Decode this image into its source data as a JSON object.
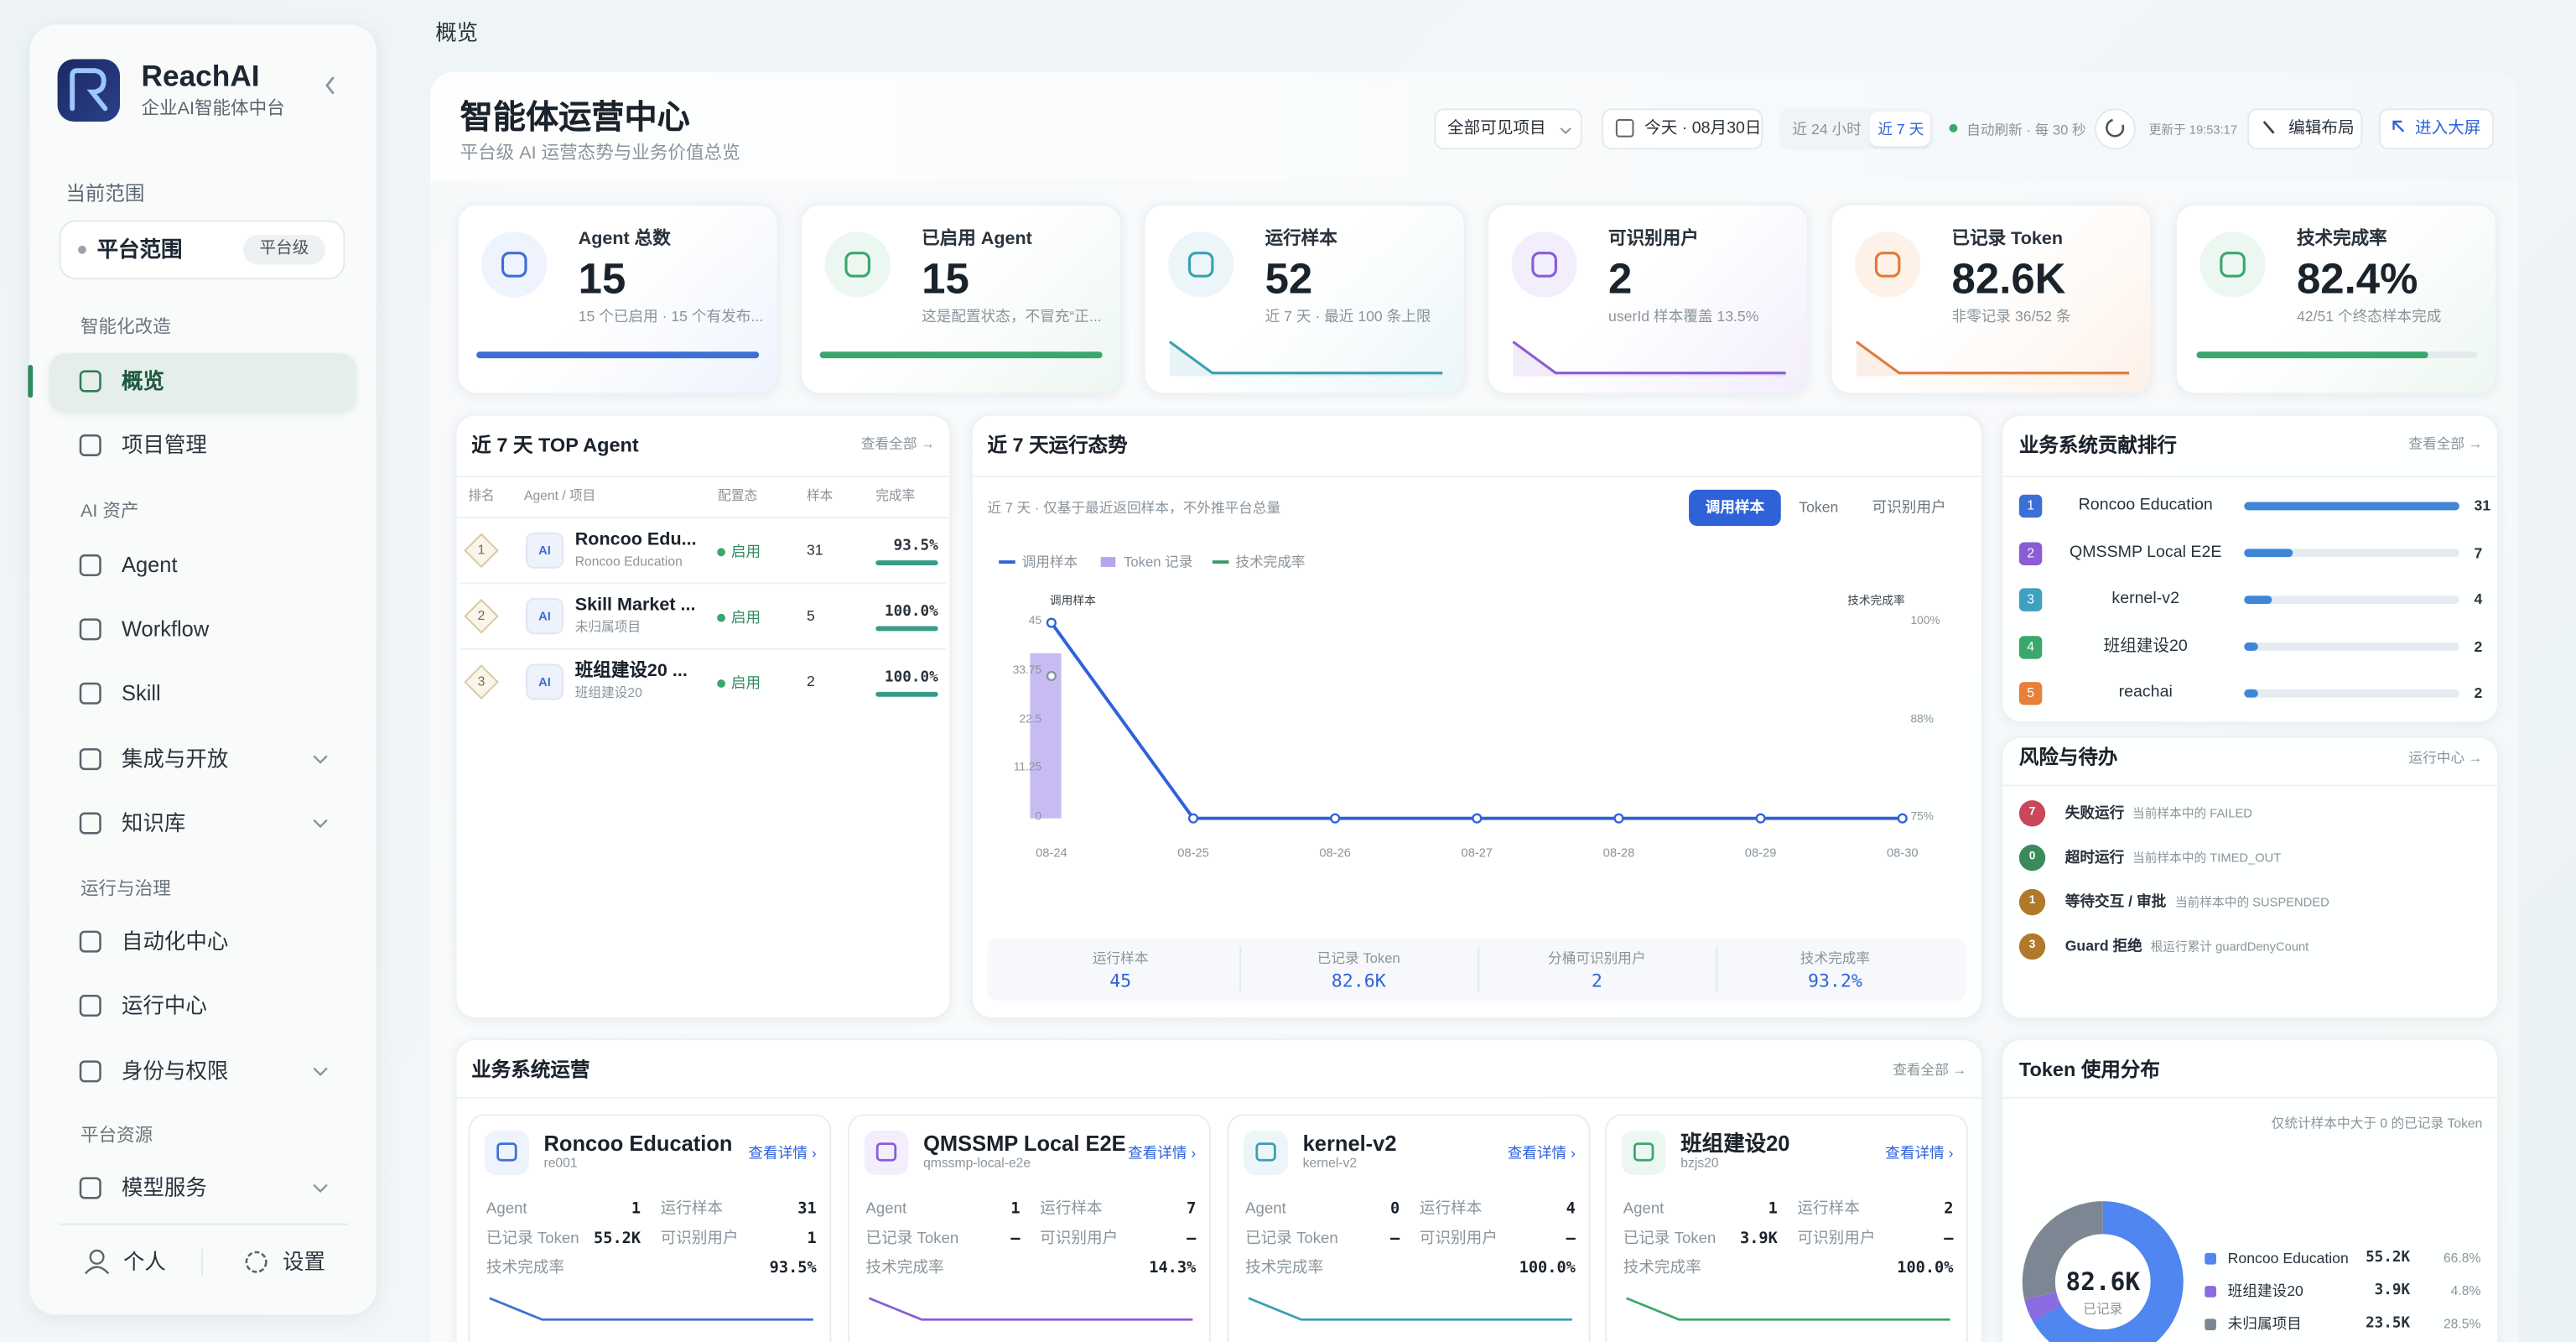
{
  "sidebar": {
    "brand": "ReachAI",
    "tagline": "企业AI智能体中台",
    "scope_label": "当前范围",
    "scope": "平台范围",
    "scope_level": "平台级",
    "groups": [
      {
        "title": "智能化改造",
        "items": [
          "概览",
          "项目管理"
        ]
      },
      {
        "title": "AI 资产",
        "items": [
          "Agent",
          "Workflow",
          "Skill",
          "集成与开放",
          "知识库"
        ]
      },
      {
        "title": "运行与治理",
        "items": [
          "自动化中心",
          "运行中心",
          "身份与权限"
        ]
      },
      {
        "title": "平台资源",
        "items": [
          "模型服务"
        ]
      }
    ],
    "footer": [
      "个人",
      "设置"
    ]
  },
  "breadcrumb": "概览",
  "header": {
    "title": "智能体运营中心",
    "subtitle": "平台级 AI 运营态势与业务价值总览",
    "project_select": "全部可见项目",
    "date": "今天 · 08月30日",
    "ranges": [
      "近 24 小时",
      "近 7 天"
    ],
    "auto_refresh": "自动刷新 · 每 30 秒",
    "updated": "更新于 19:53:17",
    "edit_layout": "编辑布局",
    "big_screen": "进入大屏"
  },
  "kpis": [
    {
      "label": "Agent 总数",
      "value": "15",
      "note": "15 个已启用 · 15 个有发布..."
    },
    {
      "label": "已启用 Agent",
      "value": "15",
      "note": "这是配置状态，不冒充“正..."
    },
    {
      "label": "运行样本",
      "value": "52",
      "note": "近 7 天 · 最近 100 条上限"
    },
    {
      "label": "可识别用户",
      "value": "2",
      "note": "userId 样本覆盖 13.5%"
    },
    {
      "label": "已记录 Token",
      "value": "82.6K",
      "note": "非零记录 36/52 条"
    },
    {
      "label": "技术完成率",
      "value": "82.4%",
      "note": "42/51 个终态样本完成"
    }
  ],
  "top_agents": {
    "title": "近 7 天 TOP Agent",
    "more": "查看全部 →",
    "columns": [
      "排名",
      "Agent / 项目",
      "配置态",
      "样本",
      "完成率"
    ],
    "rows": [
      {
        "rank": "1",
        "badge": "AI",
        "name": "Roncoo Edu...",
        "project": "Roncoo Education",
        "status": "启用",
        "samples": "31",
        "rate": "93.5%"
      },
      {
        "rank": "2",
        "badge": "AI",
        "name": "Skill Market ...",
        "project": "未归属项目",
        "status": "启用",
        "samples": "5",
        "rate": "100.0%"
      },
      {
        "rank": "3",
        "badge": "AI",
        "name": "班组建设20 ...",
        "project": "班组建设20",
        "status": "启用",
        "samples": "2",
        "rate": "100.0%"
      }
    ]
  },
  "trend": {
    "title": "近 7 天运行态势",
    "note": "近 7 天 · 仅基于最近返回样本，不外推平台总量",
    "tabs": [
      "调用样本",
      "Token",
      "可识别用户"
    ],
    "chart": {
      "type": "line",
      "y_title": "调用样本",
      "y2_title": "技术完成率",
      "categories": [
        "08-24",
        "08-25",
        "08-26",
        "08-27",
        "08-28",
        "08-29",
        "08-30"
      ],
      "series": [
        {
          "name": "调用样本",
          "type": "line",
          "color": "#2f62d9",
          "values": [
            45,
            0,
            0,
            0,
            0,
            0,
            0
          ]
        },
        {
          "name": "Token 记录",
          "type": "bar",
          "color": "#b6a4ee",
          "values": [
            38,
            0,
            0,
            0,
            0,
            0,
            0
          ]
        },
        {
          "name": "技术完成率",
          "type": "line",
          "axis": "y2",
          "color": "#3a9a6a",
          "values": [
            93.2,
            null,
            null,
            null,
            null,
            null,
            null
          ]
        }
      ],
      "ylim": [
        0,
        45
      ],
      "yticks": [
        0,
        11.25,
        22.5,
        33.75,
        45
      ],
      "y2lim": [
        75,
        100
      ],
      "y2ticks": [
        {
          "value": 75,
          "label": "75%"
        },
        {
          "value": 87.5,
          "label": "88%"
        },
        {
          "value": 100,
          "label": "100%"
        }
      ]
    },
    "summary": [
      {
        "label": "运行样本",
        "value": "45"
      },
      {
        "label": "已记录 Token",
        "value": "82.6K"
      },
      {
        "label": "分桶可识别用户",
        "value": "2"
      },
      {
        "label": "技术完成率",
        "value": "93.2%"
      }
    ]
  },
  "ranking": {
    "title": "业务系统贡献排行",
    "more": "查看全部 →",
    "items": [
      {
        "rank": "1",
        "name": "Roncoo Education",
        "value": 31
      },
      {
        "rank": "2",
        "name": "QMSSMP Local E2E",
        "value": 7
      },
      {
        "rank": "3",
        "name": "kernel-v2",
        "value": 4
      },
      {
        "rank": "4",
        "name": "班组建设20",
        "value": 2
      },
      {
        "rank": "5",
        "name": "reachai",
        "value": 2
      }
    ]
  },
  "risks": {
    "title": "风险与待办",
    "more": "运行中心 →",
    "items": [
      {
        "count": "7",
        "label": "失败运行",
        "note": "当前样本中的 FAILED"
      },
      {
        "count": "0",
        "label": "超时运行",
        "note": "当前样本中的 TIMED_OUT"
      },
      {
        "count": "1",
        "label": "等待交互 / 审批",
        "note": "当前样本中的 SUSPENDED"
      },
      {
        "count": "3",
        "label": "Guard 拒绝",
        "note": "根运行累计 guardDenyCount"
      }
    ]
  },
  "business": {
    "title": "业务系统运营",
    "more": "查看全部 →",
    "detail": "查看详情 ›",
    "metric_labels": [
      "Agent",
      "运行样本",
      "已记录 Token",
      "可识别用户",
      "技术完成率"
    ],
    "cards": [
      {
        "name": "Roncoo Education",
        "code": "re001",
        "metrics": [
          "1",
          "31",
          "55.2K",
          "1",
          "93.5%"
        ]
      },
      {
        "name": "QMSSMP Local E2E",
        "code": "qmssmp-local-e2e",
        "metrics": [
          "1",
          "7",
          "–",
          "–",
          "14.3%"
        ]
      },
      {
        "name": "kernel-v2",
        "code": "kernel-v2",
        "metrics": [
          "0",
          "4",
          "–",
          "–",
          "100.0%"
        ]
      },
      {
        "name": "班组建设20",
        "code": "bzjs20",
        "metrics": [
          "1",
          "2",
          "3.9K",
          "–",
          "100.0%"
        ]
      }
    ]
  },
  "token_distribution": {
    "title": "Token 使用分布",
    "note": "仅统计样本中大于 0 的已记录 Token",
    "center_value": "82.6K",
    "center_label": "已记录",
    "chart": {
      "type": "pie",
      "categories": [
        "Roncoo Education",
        "班组建设20",
        "未归属项目"
      ],
      "amounts": [
        "55.2K",
        "3.9K",
        "23.5K"
      ],
      "values": [
        66.8,
        4.8,
        28.5
      ],
      "value_labels": [
        "66.8%",
        "4.8%",
        "28.5%"
      ],
      "colors": [
        "#4f86f0",
        "#8a6be0",
        "#7d8794"
      ]
    }
  }
}
